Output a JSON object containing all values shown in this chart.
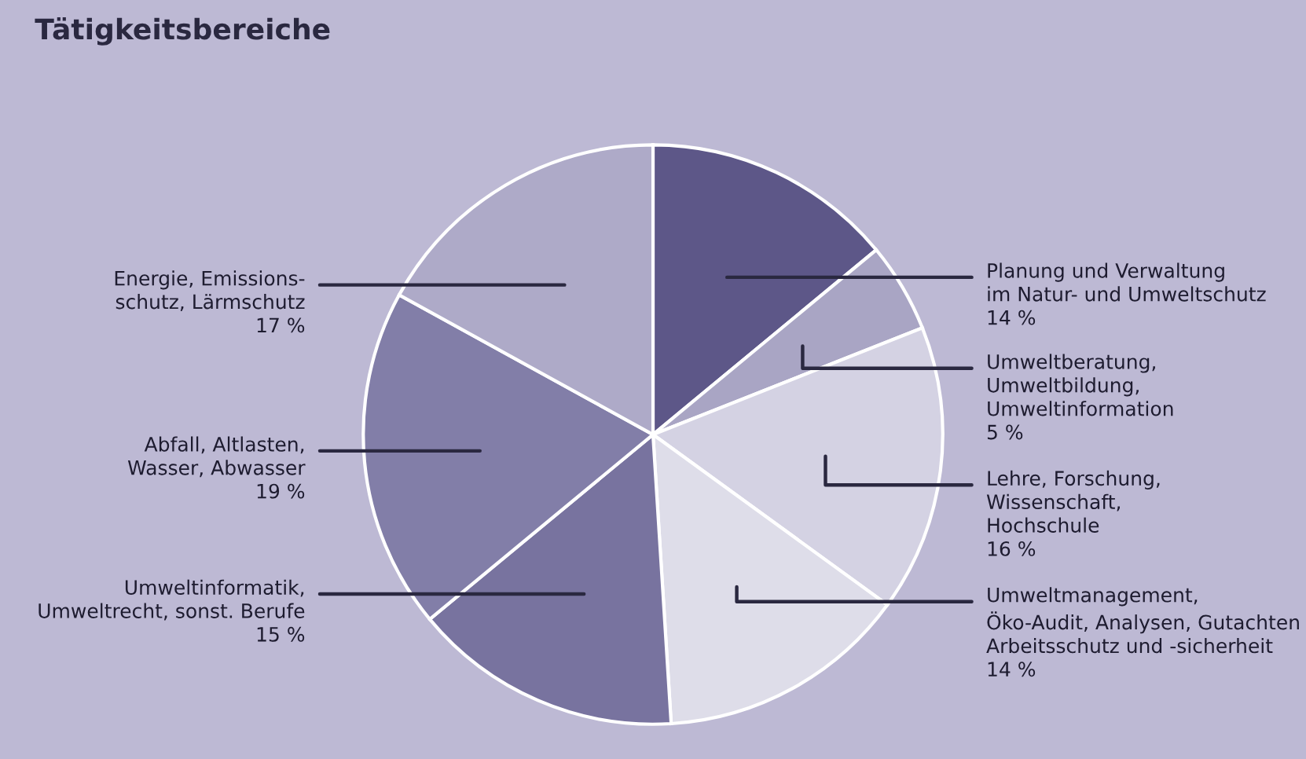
{
  "chart_data": {
    "type": "pie",
    "title": "Tätigkeitsbereiche",
    "categories": [
      "Planung und Verwaltung\nim Natur- und Umweltschutz",
      "Umweltberatung,\nUmweltbildung,\nUmweltinformation",
      "Lehre, Forschung,\nWissenschaft,\nHochschule",
      "Umweltmanagement,\nÖko-Audit, Analysen, Gutachten\nArbeitsschutz und -sicherheit",
      "Umweltinformatik,\nUmweltrecht, sonst. Berufe",
      "Abfall, Altlasten,\nWasser, Abwasser",
      "Energie, Emissions-\nschutz, Lärmschutz"
    ],
    "values": [
      14,
      5,
      16,
      14,
      15,
      19,
      17
    ],
    "value_labels": [
      "14 %",
      "5 %",
      "16 %",
      "14 %",
      "15 %",
      "19 %",
      "17 %"
    ],
    "colors": [
      "#5d5788",
      "#a9a5c4",
      "#d4d2e3",
      "#dedde9",
      "#78739f",
      "#827ea8",
      "#aeaac8"
    ]
  }
}
